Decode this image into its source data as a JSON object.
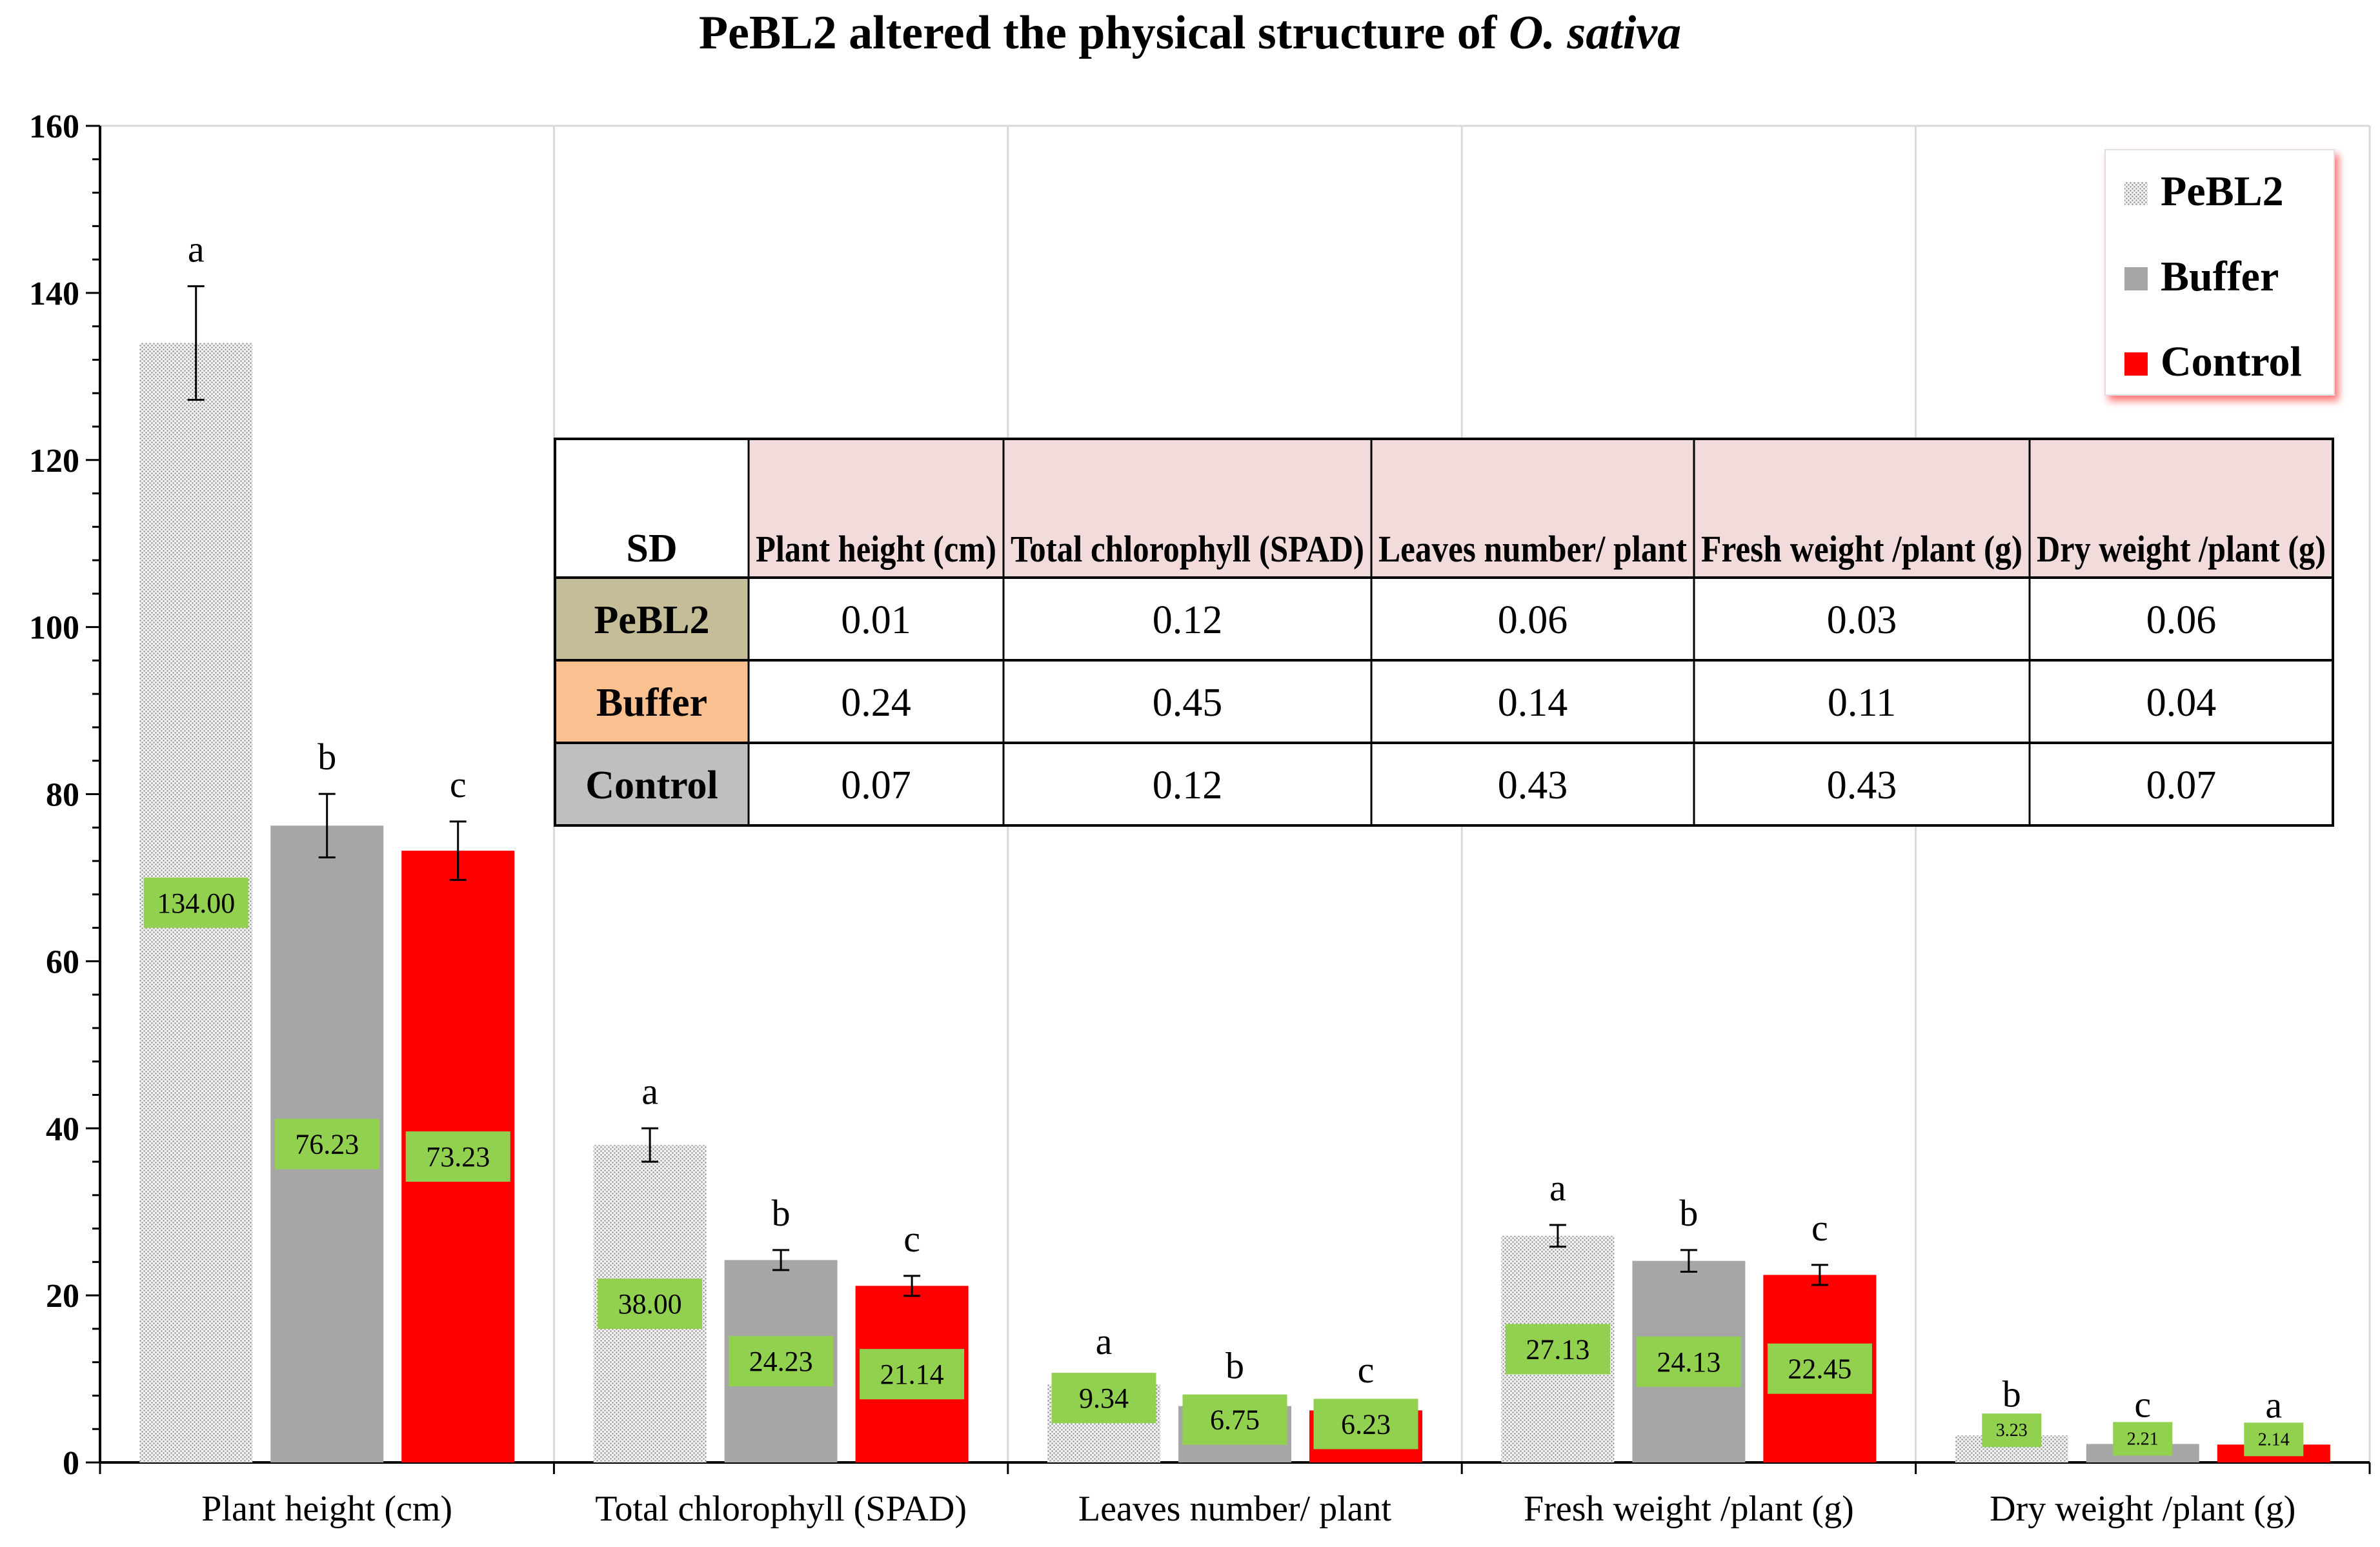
{
  "chart_data": {
    "type": "bar",
    "title": "PeBL2 altered the physical structure of ",
    "title_italic": "O. sativa",
    "categories": [
      "Plant height (cm)",
      "Total chlorophyll (SPAD)",
      "Leaves number/ plant",
      "Fresh weight /plant (g)",
      "Dry weight /plant (g)"
    ],
    "series": [
      {
        "name": "PeBL2",
        "color": "#d9d9d9",
        "pattern": "dotted",
        "values": [
          134.0,
          38.0,
          9.34,
          27.13,
          3.23
        ],
        "value_labels": [
          "134.00",
          "38.00",
          "9.34",
          "27.13",
          "3.23"
        ],
        "errors": [
          6.8,
          2.0,
          0.7,
          1.3,
          0.5
        ],
        "letters": [
          "a",
          "a",
          "a",
          "a",
          "b"
        ]
      },
      {
        "name": "Buffer",
        "color": "#a6a6a6",
        "values": [
          76.23,
          24.23,
          6.75,
          24.13,
          2.21
        ],
        "value_labels": [
          "76.23",
          "24.23",
          "6.75",
          "24.13",
          "2.21"
        ],
        "errors": [
          3.8,
          1.2,
          0.4,
          1.3,
          0.3
        ],
        "letters": [
          "b",
          "b",
          "b",
          "b",
          "c"
        ]
      },
      {
        "name": "Control",
        "color": "#ff0000",
        "values": [
          73.23,
          21.14,
          6.23,
          22.45,
          2.14
        ],
        "value_labels": [
          "73.23",
          "21.14",
          "6.23",
          "22.45",
          "2.14"
        ],
        "errors": [
          3.5,
          1.2,
          0.4,
          1.2,
          0.3
        ],
        "letters": [
          "c",
          "c",
          "c",
          "c",
          "a"
        ]
      }
    ],
    "ylim": [
      0,
      160
    ],
    "yticks": [
      0,
      20,
      40,
      60,
      80,
      100,
      120,
      140,
      160
    ],
    "ytick_labels": [
      "0",
      "20",
      "40",
      "60",
      "80",
      "100",
      "120",
      "140",
      "160"
    ],
    "grid": true,
    "legend": {
      "placement": "top-right",
      "entries": [
        "PeBL2",
        "Buffer",
        "Control"
      ]
    },
    "value_label_color": "#92d050",
    "inset_table": {
      "corner": "SD",
      "columns": [
        "Plant height (cm)",
        "Total chlorophyll (SPAD)",
        "Leaves number/ plant",
        "Fresh weight /plant (g)",
        "Dry weight /plant (g)"
      ],
      "header_color": "#f2dcdb",
      "rows": [
        {
          "label": "PeBL2",
          "color": "#c4bd97",
          "cells": [
            "0.01",
            "0.12",
            "0.06",
            "0.03",
            "0.06"
          ]
        },
        {
          "label": "Buffer",
          "color": "#fac090",
          "cells": [
            "0.24",
            "0.45",
            "0.14",
            "0.11",
            "0.04"
          ]
        },
        {
          "label": "Control",
          "color": "#bfbfbf",
          "cells": [
            "0.07",
            "0.12",
            "0.43",
            "0.43",
            "0.07"
          ]
        }
      ]
    }
  }
}
